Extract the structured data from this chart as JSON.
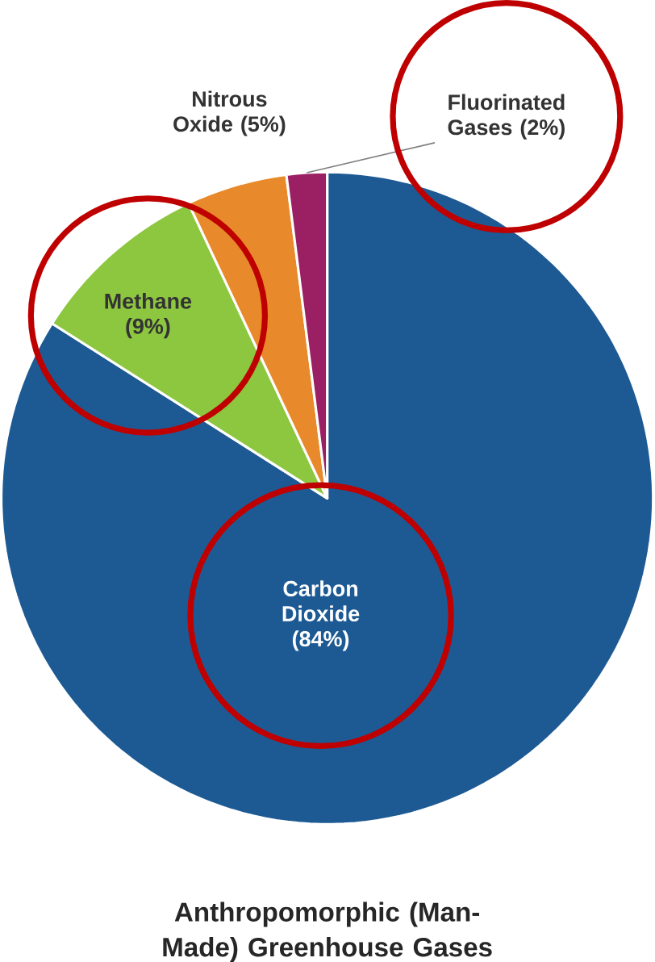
{
  "chart_data": {
    "type": "pie",
    "title": "Anthropomorphic (Man-Made) Greenhouse Gases",
    "categories": [
      "Carbon Dioxide",
      "Methane",
      "Nitrous Oxide",
      "Fluorinated Gases"
    ],
    "values": [
      84,
      9,
      5,
      2
    ],
    "colors": [
      "#1d5a94",
      "#8dc63f",
      "#e8892b",
      "#9b1f63"
    ],
    "value_labels": [
      "(84%)",
      "(9%)",
      "(5%)",
      "(2%)"
    ]
  }
}
